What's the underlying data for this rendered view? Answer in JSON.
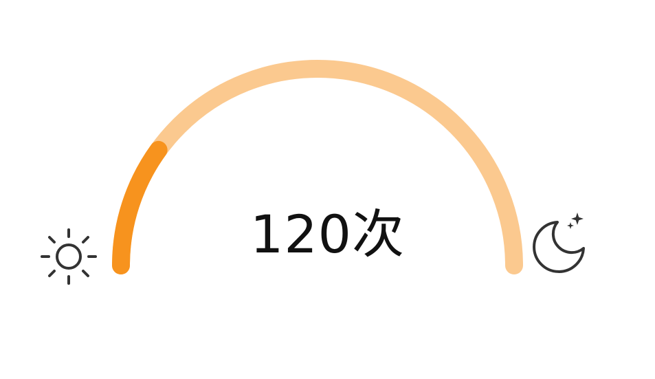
{
  "gauge": {
    "value": 120,
    "unit": "次",
    "progress_fraction": 0.2,
    "colors": {
      "track": "#fbc98f",
      "fill": "#f7931e",
      "icon": "#333333",
      "text": "#111111"
    }
  },
  "icons": {
    "left": "sun-icon",
    "right": "moon-icon"
  }
}
